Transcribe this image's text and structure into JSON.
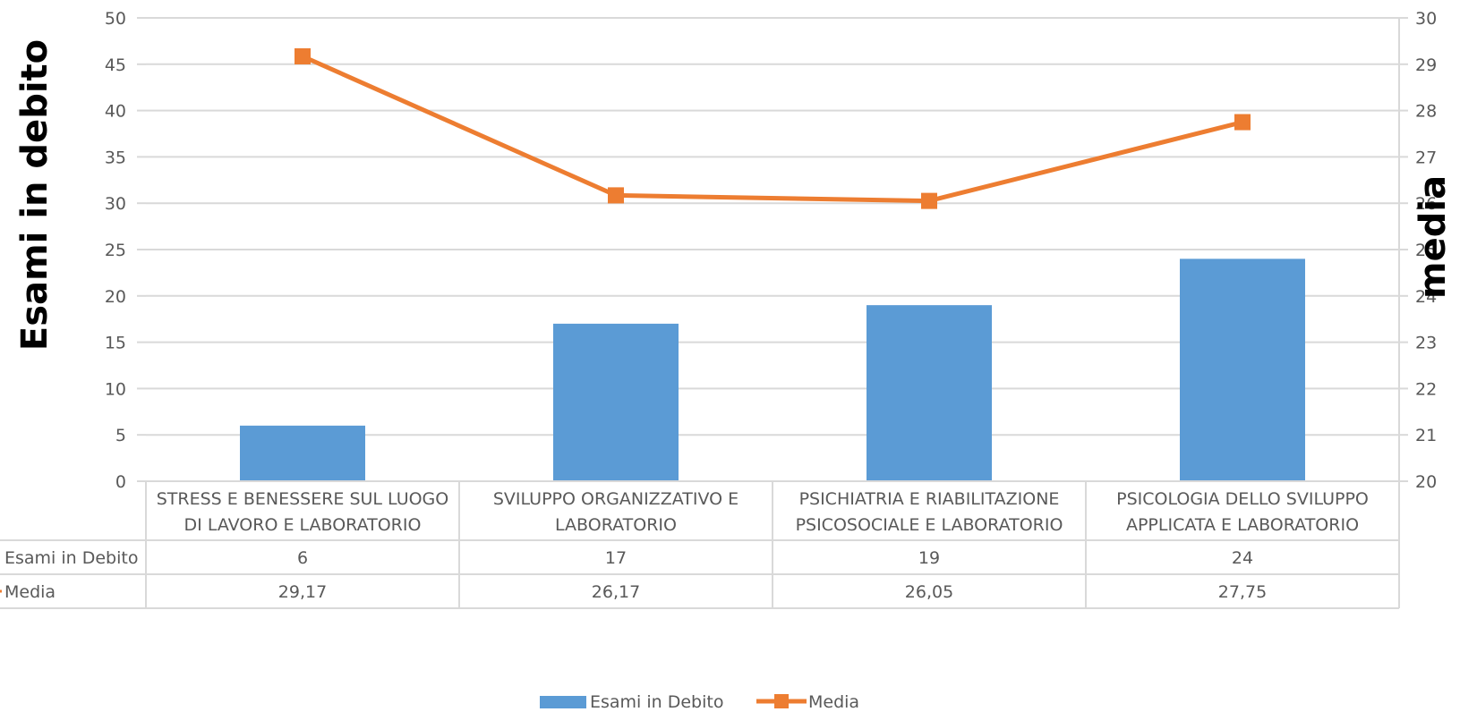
{
  "chart_data": {
    "type": "bar",
    "categories": [
      [
        "STRESS E BENESSERE SUL LUOGO",
        "DI LAVORO E LABORATORIO"
      ],
      [
        "SVILUPPO ORGANIZZATIVO E",
        "LABORATORIO"
      ],
      [
        "PSICHIATRIA E RIABILITAZIONE",
        "PSICOSOCIALE E LABORATORIO"
      ],
      [
        "PSICOLOGIA DELLO SVILUPPO",
        "APPLICATA E LABORATORIO"
      ]
    ],
    "series": [
      {
        "name": "Esami in Debito",
        "type": "bar",
        "axis": "left",
        "values": [
          6,
          17,
          19,
          24
        ],
        "labels": [
          "6",
          "17",
          "19",
          "24"
        ],
        "color": "#5B9BD5"
      },
      {
        "name": "Media",
        "type": "line",
        "axis": "right",
        "marker": "square",
        "values": [
          29.17,
          26.17,
          26.05,
          27.75
        ],
        "labels": [
          "29,17",
          "26,17",
          "26,05",
          "27,75"
        ],
        "color": "#ED7D31"
      }
    ],
    "ylabel": "Esami in debito",
    "y2label": "media",
    "ylim": [
      0,
      50
    ],
    "y2lim": [
      20,
      30
    ],
    "yticks": [
      "0",
      "5",
      "10",
      "15",
      "20",
      "25",
      "30",
      "35",
      "40",
      "45",
      "50"
    ],
    "y2ticks": [
      "20",
      "21",
      "22",
      "23",
      "24",
      "25",
      "26",
      "27",
      "28",
      "29",
      "30"
    ],
    "grid": true,
    "data_table": true,
    "legend_position": "bottom",
    "colors": {
      "grid": "#D9D9D9",
      "text": "#595959"
    }
  }
}
